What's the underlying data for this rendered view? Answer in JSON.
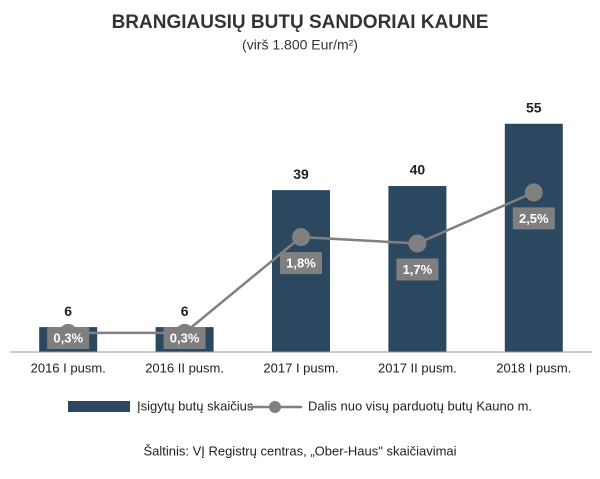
{
  "chart_data": {
    "type": "bar-line",
    "title": "BRANGIAUSIŲ BUTŲ SANDORIAI KAUNE",
    "subtitle": "(virš 1.800 Eur/m²)",
    "categories": [
      "2016 I pusm.",
      "2016 II pusm.",
      "2017 I pusm.",
      "2017 II pusm.",
      "2018 I pusm."
    ],
    "series": [
      {
        "name": "Įsigytų butų skaičius",
        "type": "bar",
        "color": "#2c4760",
        "values": [
          6,
          6,
          39,
          40,
          55
        ]
      },
      {
        "name": "Dalis nuo visų parduotų butų Kauno m.",
        "type": "line",
        "axis": "y2",
        "color": "#808080",
        "values": [
          0.3,
          0.3,
          1.8,
          1.7,
          2.5
        ],
        "value_labels": [
          "0,3%",
          "0,3%",
          "1,8%",
          "1,7%",
          "2,5%"
        ]
      }
    ],
    "ylim": [
      0,
      60
    ],
    "y2lim": [
      0,
      3.9
    ],
    "source": "Šaltinis: VĮ Registrų centras, „Ober-Haus\" skaičiavimai"
  }
}
